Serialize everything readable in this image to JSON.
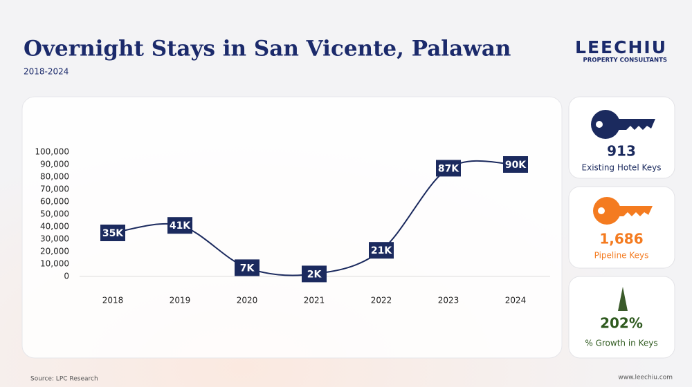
{
  "header": {
    "title": "Overnight Stays in San Vicente, Palawan",
    "subtitle": "2018-2024",
    "logo": "LEECHIU",
    "logo_tagline": "PROPERTY CONSULTANTS"
  },
  "chart_data": {
    "type": "line",
    "categories": [
      "2018",
      "2019",
      "2020",
      "2021",
      "2022",
      "2023",
      "2024"
    ],
    "values": [
      35000,
      41000,
      7000,
      2000,
      21000,
      87000,
      90000
    ],
    "value_labels": [
      "35K",
      "41K",
      "7K",
      "2K",
      "21K",
      "87K",
      "90K"
    ],
    "color": "#1b2a5e",
    "ylim": [
      0,
      100000
    ],
    "yticks": [
      0,
      {
        "value": 10000,
        "label": "10,000"
      },
      {
        "value": 20000,
        "label": "20,000"
      },
      {
        "value": 30000,
        "label": "30,000"
      },
      {
        "value": 40000,
        "label": "40,000"
      },
      {
        "value": 50000,
        "label": "50,000"
      },
      {
        "value": 60000,
        "label": "60,000"
      },
      {
        "value": 70000,
        "label": "70,000"
      },
      {
        "value": 80000,
        "label": "80,000"
      },
      {
        "value": 90000,
        "label": "90,000"
      },
      {
        "value": 100000,
        "label": "100,000"
      }
    ]
  },
  "stats": [
    {
      "value": "913",
      "label": "Existing Hotel Keys"
    },
    {
      "value": "1,686",
      "label": "Pipeline Keys"
    },
    {
      "value": "202%",
      "label": "% Growth in Keys"
    }
  ],
  "footer": {
    "source": "Source: LPC Research",
    "website": "www.leechiu.com"
  }
}
